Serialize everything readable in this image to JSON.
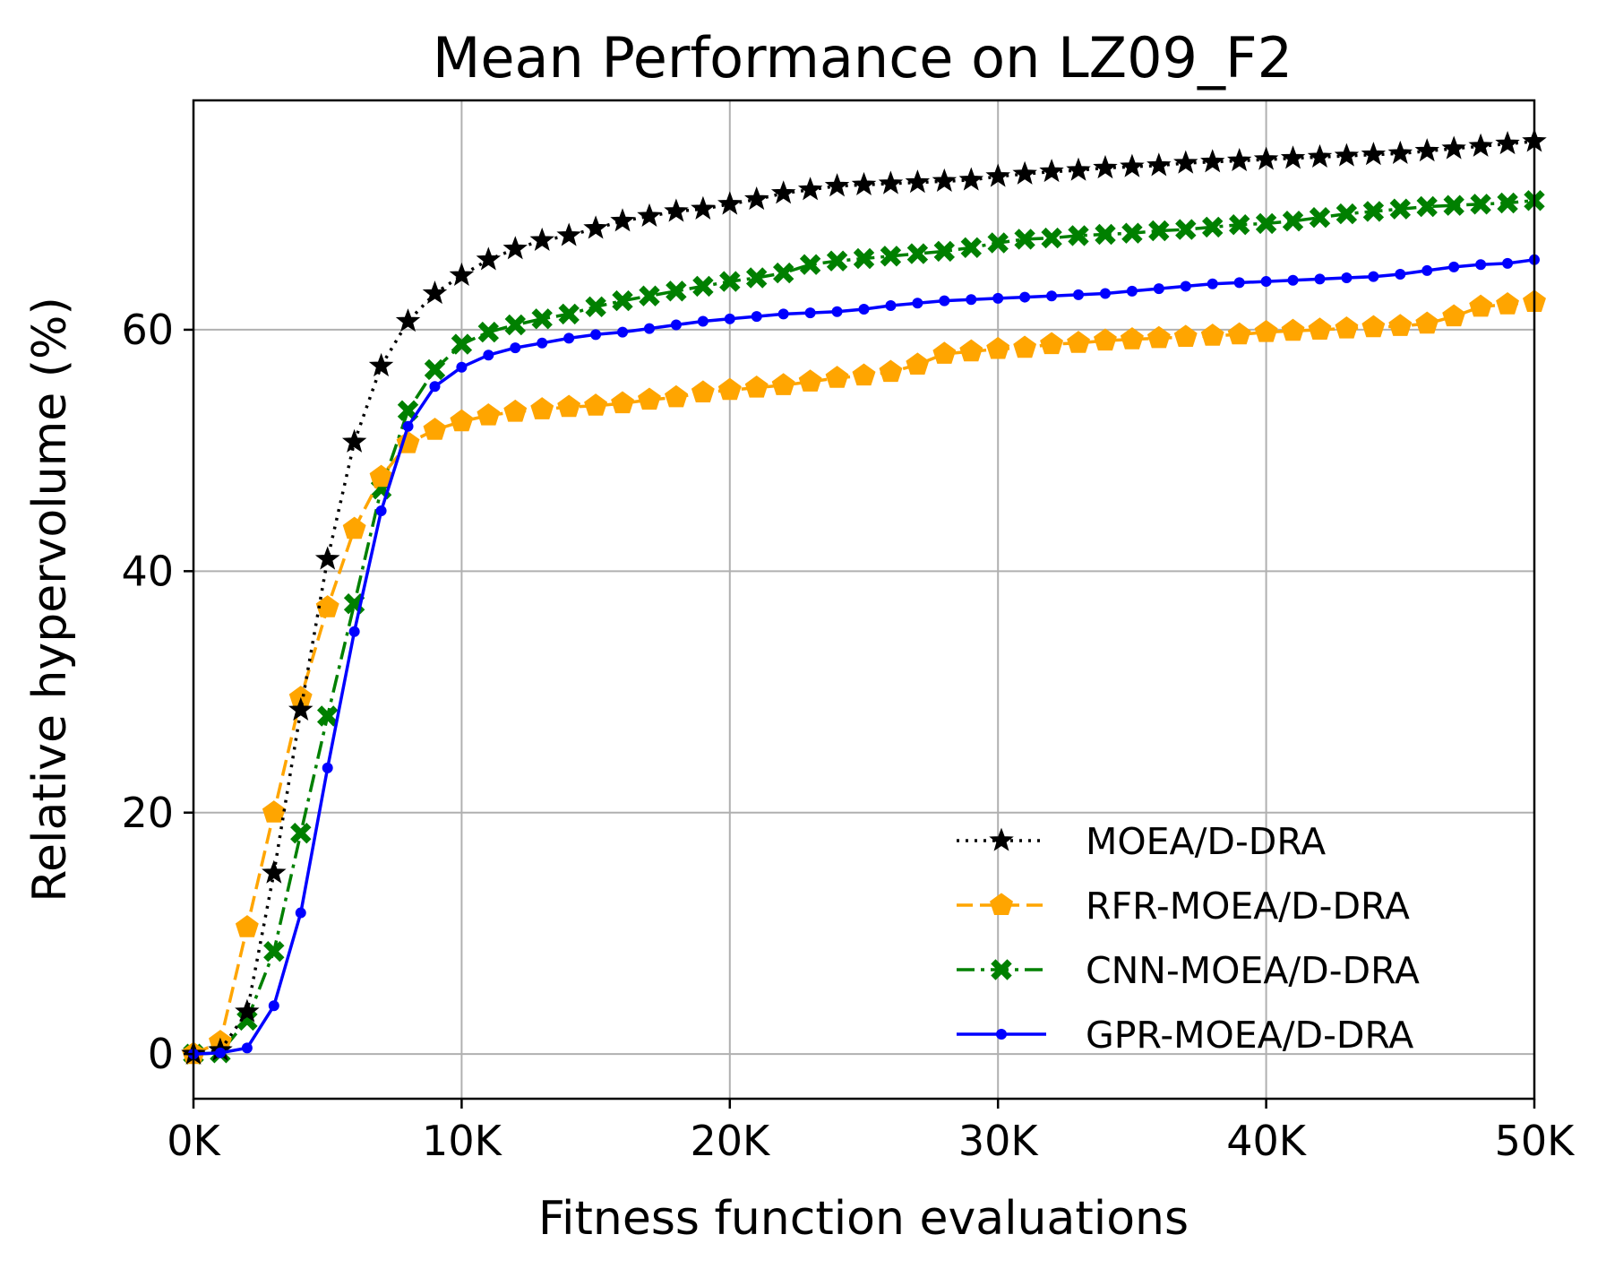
{
  "chart_data": {
    "type": "line",
    "title": "Mean Performance on LZ09_F2",
    "xlabel": "Fitness function evaluations",
    "ylabel": "Relative hypervolume (%)",
    "xlim": [
      0,
      50
    ],
    "ylim": [
      -3.7,
      79
    ],
    "x_unit_suffix": "K",
    "xticks": [
      0,
      10,
      20,
      30,
      40,
      50
    ],
    "xtick_labels": [
      "0K",
      "10K",
      "20K",
      "30K",
      "40K",
      "50K"
    ],
    "yticks": [
      0,
      20,
      40,
      60
    ],
    "ytick_labels": [
      "0",
      "20",
      "40",
      "60"
    ],
    "grid": true,
    "legend_position": "lower-right",
    "x": [
      0,
      1,
      2,
      3,
      4,
      5,
      6,
      7,
      8,
      9,
      10,
      11,
      12,
      13,
      14,
      15,
      16,
      17,
      18,
      19,
      20,
      21,
      22,
      23,
      24,
      25,
      26,
      27,
      28,
      29,
      30,
      31,
      32,
      33,
      34,
      35,
      36,
      37,
      38,
      39,
      40,
      41,
      42,
      43,
      44,
      45,
      46,
      47,
      48,
      49,
      50
    ],
    "series": [
      {
        "name": "MOEA/D-DRA",
        "color": "#000000",
        "style": "dotted",
        "marker": "star",
        "values": [
          0,
          0.3,
          3.5,
          15,
          28.5,
          41,
          50.7,
          57,
          60.7,
          63,
          64.5,
          65.8,
          66.7,
          67.4,
          67.8,
          68.4,
          69,
          69.4,
          69.8,
          70,
          70.4,
          70.8,
          71.3,
          71.6,
          71.9,
          72,
          72.1,
          72.2,
          72.3,
          72.4,
          72.7,
          72.9,
          73.1,
          73.2,
          73.4,
          73.5,
          73.6,
          73.8,
          73.9,
          74,
          74.1,
          74.2,
          74.3,
          74.4,
          74.5,
          74.6,
          74.8,
          75,
          75.2,
          75.4,
          75.6
        ]
      },
      {
        "name": "RFR-MOEA/D-DRA",
        "color": "#FFA500",
        "style": "dashed",
        "marker": "pentagon",
        "values": [
          0,
          1,
          10.5,
          20,
          29.5,
          37,
          43.5,
          47.8,
          50.6,
          51.7,
          52.4,
          52.9,
          53.2,
          53.4,
          53.6,
          53.7,
          53.9,
          54.2,
          54.4,
          54.8,
          55,
          55.2,
          55.4,
          55.7,
          56,
          56.2,
          56.5,
          57.1,
          58,
          58.2,
          58.4,
          58.5,
          58.8,
          58.9,
          59.1,
          59.2,
          59.3,
          59.4,
          59.5,
          59.6,
          59.8,
          59.9,
          60,
          60.1,
          60.2,
          60.3,
          60.5,
          61.1,
          61.9,
          62.1,
          62.3
        ]
      },
      {
        "name": "CNN-MOEA/D-DRA",
        "color": "#008000",
        "style": "dashdot",
        "marker": "x",
        "values": [
          0,
          0.1,
          2.8,
          8.5,
          18.3,
          28,
          37.3,
          46.8,
          53.3,
          56.7,
          58.8,
          59.8,
          60.4,
          60.9,
          61.3,
          61.9,
          62.4,
          62.8,
          63.2,
          63.6,
          64,
          64.3,
          64.7,
          65.4,
          65.7,
          65.9,
          66.1,
          66.3,
          66.5,
          66.8,
          67.2,
          67.5,
          67.6,
          67.8,
          67.9,
          68,
          68.2,
          68.3,
          68.5,
          68.7,
          68.8,
          69,
          69.3,
          69.6,
          69.8,
          70,
          70.2,
          70.3,
          70.4,
          70.5,
          70.7
        ]
      },
      {
        "name": "GPR-MOEA/D-DRA",
        "color": "#0000FF",
        "style": "solid",
        "marker": "dot",
        "values": [
          0,
          0.1,
          0.5,
          4,
          11.7,
          23.7,
          35,
          45,
          52,
          55.3,
          56.9,
          57.9,
          58.5,
          58.9,
          59.3,
          59.6,
          59.8,
          60.1,
          60.4,
          60.7,
          60.9,
          61.1,
          61.3,
          61.4,
          61.5,
          61.7,
          62,
          62.2,
          62.4,
          62.5,
          62.6,
          62.7,
          62.8,
          62.9,
          63,
          63.2,
          63.4,
          63.6,
          63.8,
          63.9,
          64,
          64.1,
          64.2,
          64.3,
          64.4,
          64.6,
          64.9,
          65.2,
          65.4,
          65.5,
          65.8
        ]
      }
    ]
  }
}
